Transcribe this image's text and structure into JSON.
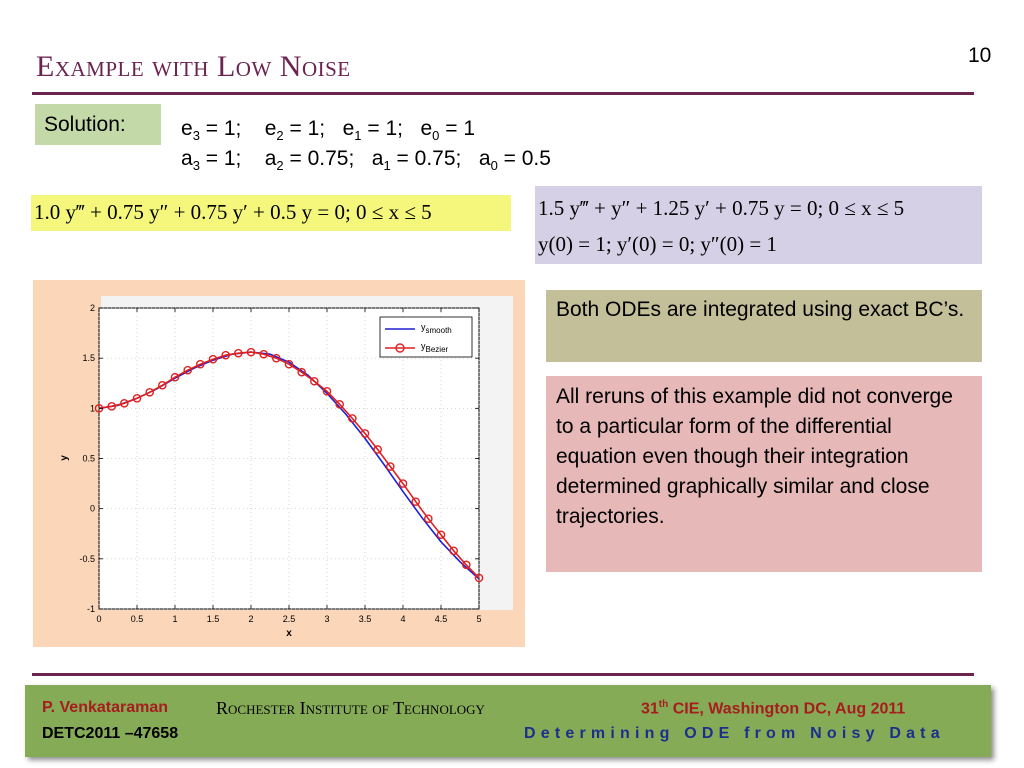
{
  "slide": {
    "title": "Example with Low Noise",
    "page_number": "10"
  },
  "solution": {
    "label": "Solution:",
    "e_line": [
      {
        "var": "e",
        "sub": "3",
        "rest": " = 1;    "
      },
      {
        "var": "e",
        "sub": "2",
        "rest": " = 1;   "
      },
      {
        "var": "e",
        "sub": "1",
        "rest": " = 1;   "
      },
      {
        "var": "e",
        "sub": "0",
        "rest": " = 1"
      }
    ],
    "a_line": [
      {
        "var": "a",
        "sub": "3",
        "rest": " = 1;    "
      },
      {
        "var": "a",
        "sub": "2",
        "rest": " = 0.75;   "
      },
      {
        "var": "a",
        "sub": "1",
        "rest": " = 0.75;   "
      },
      {
        "var": "a",
        "sub": "0",
        "rest": " = 0.5"
      }
    ]
  },
  "equations": {
    "smooth_ode": "1.0 y‴ + 0.75 y″ + 0.75 y′ + 0.5 y = 0;    0 ≤ x ≤ 5",
    "bezier_ode": "1.5 y‴ + y″ + 1.25 y′ + 0.75 y = 0;    0 ≤ x ≤ 5",
    "initial_conditions": "y(0) = 1;  y′(0) = 0;  y″(0) = 1"
  },
  "notes": {
    "integration": "Both ODEs are integrated using exact BC’s.",
    "reruns": "All reruns of this example did not converge to a particular form of the differential equation even though their integration determined graphically similar and close trajectories."
  },
  "chart_data": {
    "type": "line",
    "xlabel": "x",
    "ylabel": "y",
    "xlim": [
      0,
      5
    ],
    "ylim": [
      -1,
      2
    ],
    "xticks": [
      "0",
      "0.5",
      "1",
      "1.5",
      "2",
      "2.5",
      "3",
      "3.5",
      "4",
      "4.5",
      "5"
    ],
    "yticks": [
      "-1",
      "-0.5",
      "0",
      "0.5",
      "1",
      "1.5",
      "2"
    ],
    "legend_position": "top-right",
    "series": [
      {
        "name": "y",
        "name_sub": "smooth",
        "color": "#1f1fd4",
        "marker": "none",
        "x": [
          0,
          0.25,
          0.5,
          0.75,
          1,
          1.25,
          1.5,
          1.75,
          2,
          2.25,
          2.5,
          2.75,
          3,
          3.25,
          3.5,
          3.75,
          4,
          4.25,
          4.5,
          4.75,
          5
        ],
        "y": [
          1.0,
          1.03,
          1.1,
          1.19,
          1.3,
          1.4,
          1.48,
          1.54,
          1.56,
          1.54,
          1.46,
          1.33,
          1.15,
          0.94,
          0.7,
          0.44,
          0.17,
          -0.09,
          -0.33,
          -0.53,
          -0.7
        ]
      },
      {
        "name": "y",
        "name_sub": "Bezier",
        "color": "#e02020",
        "marker": "circle",
        "x": [
          0,
          0.167,
          0.333,
          0.5,
          0.667,
          0.833,
          1,
          1.167,
          1.333,
          1.5,
          1.667,
          1.833,
          2,
          2.167,
          2.333,
          2.5,
          2.667,
          2.833,
          3,
          3.167,
          3.333,
          3.5,
          3.667,
          3.833,
          4,
          4.167,
          4.333,
          4.5,
          4.667,
          4.833,
          5
        ],
        "y": [
          1.0,
          1.02,
          1.05,
          1.1,
          1.16,
          1.23,
          1.31,
          1.38,
          1.44,
          1.49,
          1.53,
          1.55,
          1.56,
          1.54,
          1.5,
          1.44,
          1.36,
          1.27,
          1.17,
          1.04,
          0.9,
          0.75,
          0.59,
          0.42,
          0.25,
          0.07,
          -0.1,
          -0.26,
          -0.42,
          -0.56,
          -0.69
        ]
      }
    ]
  },
  "footer": {
    "author": "P. Venkataraman",
    "institution": "Rochester Institute of Technology",
    "conference_prefix": "31",
    "conference_sup": "th",
    "conference_rest": " CIE, Washington DC, Aug 2011",
    "paper_id": "DETC2011 –47658",
    "topic": "Determining ODE from Noisy Data"
  }
}
